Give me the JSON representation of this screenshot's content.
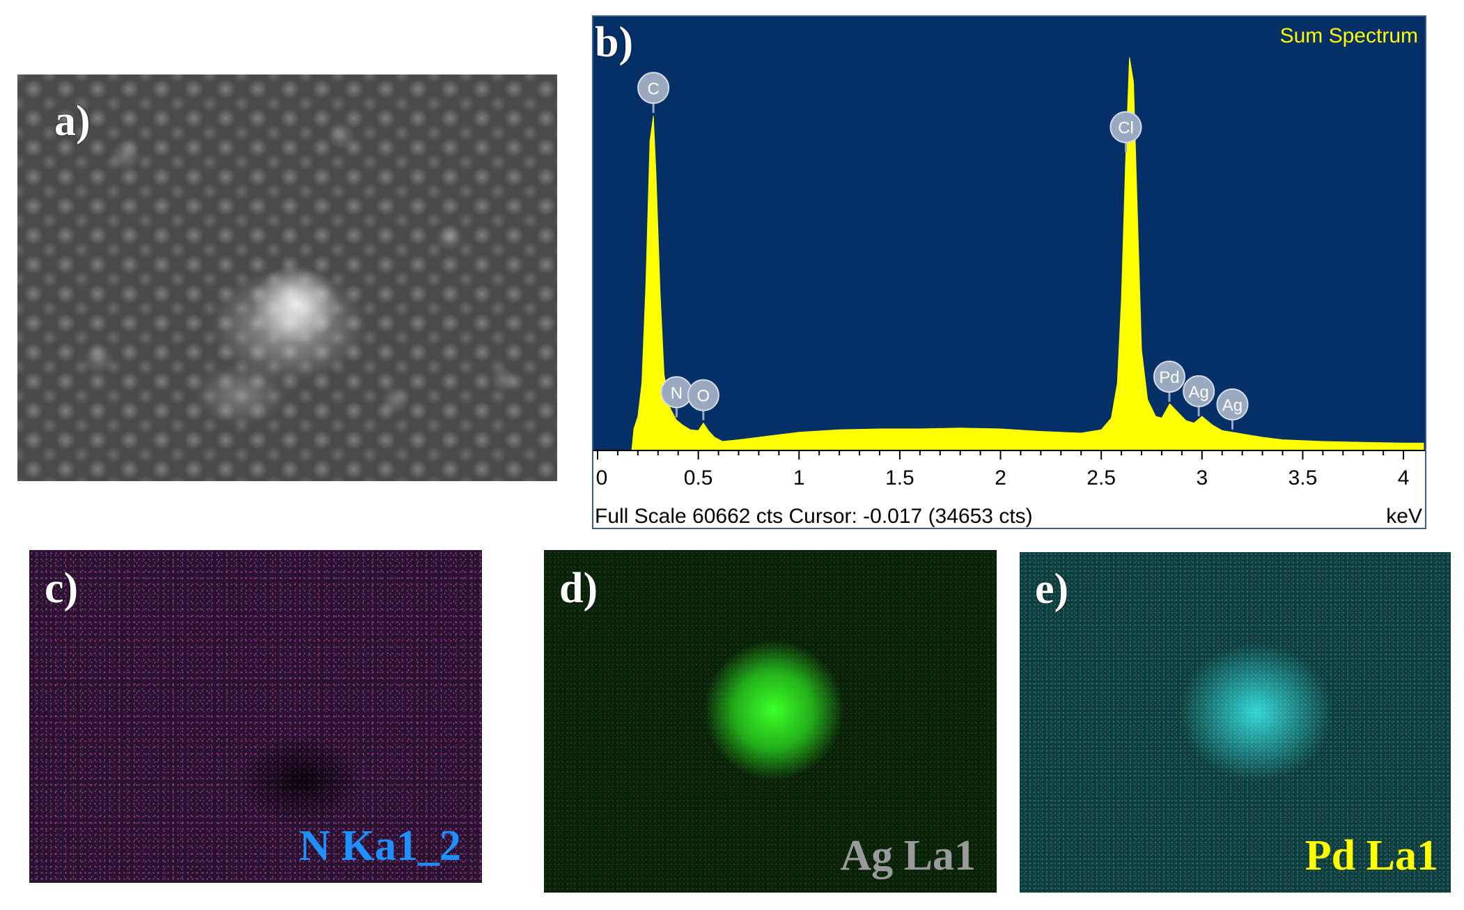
{
  "panels": {
    "a": {
      "letter": "a)"
    },
    "b": {
      "letter": "b)"
    },
    "c": {
      "letter": "c)",
      "label": "N Ka1_2",
      "label_color": "#1e90ff"
    },
    "d": {
      "letter": "d)",
      "label": "Ag La1",
      "label_color": "#9a9a9a"
    },
    "e": {
      "letter": "e)",
      "label": "Pd La1",
      "label_color": "#ffff00"
    }
  },
  "spectrum": {
    "title": "Sum Spectrum",
    "footer": "Full Scale 60662 cts Cursor: -0.017  (34653 cts)",
    "unit": "keV",
    "colors": {
      "background": "#042f67",
      "fill": "#ffff00",
      "marker": "#9aa9c0"
    }
  },
  "chart_data": {
    "type": "area",
    "title": "Sum Spectrum",
    "xlabel": "keV",
    "xlim": [
      0,
      4.1
    ],
    "ylim": [
      0,
      60662
    ],
    "x_ticks": [
      "0",
      "0.5",
      "1",
      "1.5",
      "2",
      "2.5",
      "3",
      "3.5",
      "4"
    ],
    "series": [
      {
        "x": [
          0.17,
          0.18,
          0.2,
          0.22,
          0.24,
          0.26,
          0.277,
          0.29,
          0.31,
          0.33,
          0.36,
          0.39,
          0.42,
          0.46,
          0.5,
          0.525,
          0.55,
          0.58,
          0.62,
          0.7,
          0.8,
          0.9,
          1.0,
          1.2,
          1.4,
          1.6,
          1.8,
          2.0,
          2.2,
          2.4,
          2.5,
          2.55,
          2.58,
          2.6,
          2.62,
          2.64,
          2.66,
          2.68,
          2.7,
          2.73,
          2.77,
          2.8,
          2.84,
          2.88,
          2.92,
          2.96,
          3.0,
          3.05,
          3.1,
          3.2,
          3.3,
          3.4,
          3.6,
          3.8,
          4.0,
          4.1
        ],
        "y": [
          0,
          2500,
          4000,
          8000,
          20000,
          37000,
          40000,
          33000,
          19000,
          9000,
          5000,
          3600,
          3000,
          2400,
          2300,
          3200,
          2300,
          1500,
          1000,
          1200,
          1500,
          1800,
          2100,
          2400,
          2500,
          2500,
          2600,
          2500,
          2200,
          2000,
          2400,
          3800,
          8000,
          18000,
          34000,
          47000,
          44000,
          28000,
          12000,
          6000,
          4000,
          3800,
          5500,
          4500,
          3500,
          3200,
          4000,
          3000,
          2300,
          1900,
          1500,
          1200,
          1000,
          900,
          800,
          800
        ]
      }
    ],
    "peak_labels": [
      {
        "label": "C",
        "x": 0.277
      },
      {
        "label": "N",
        "x": 0.392
      },
      {
        "label": "O",
        "x": 0.525
      },
      {
        "label": "Cl",
        "x": 2.622
      },
      {
        "label": "Pd",
        "x": 2.838
      },
      {
        "label": "Ag",
        "x": 2.984
      },
      {
        "label": "Ag",
        "x": 3.151
      }
    ]
  }
}
